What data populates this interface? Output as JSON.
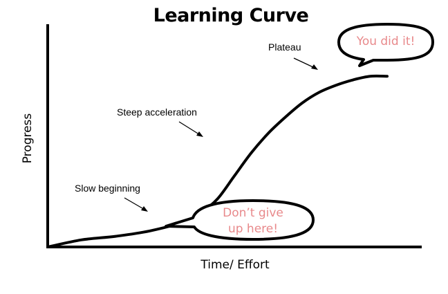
{
  "chart_data": {
    "type": "line",
    "title": "Learning Curve",
    "xlabel": "Time/ Effort",
    "ylabel": "Progress",
    "grid": false,
    "series": [
      {
        "x": [
          0,
          10,
          20,
          30,
          40,
          45,
          50,
          55,
          60,
          65,
          70,
          75,
          80,
          85,
          90,
          95,
          100
        ],
        "y": [
          0,
          4,
          6,
          9,
          14,
          19,
          27,
          40,
          53,
          64,
          73,
          81,
          87,
          91,
          94,
          96,
          96
        ],
        "color": "#000000"
      }
    ],
    "xlim": [
      0,
      100
    ],
    "ylim": [
      0,
      100
    ],
    "annotations": [
      {
        "text": "Plateau",
        "x": 83,
        "y": 100
      },
      {
        "text": "Steep acceleration",
        "x": 42,
        "y": 66
      },
      {
        "text": "Slow beginning",
        "x": 25,
        "y": 22
      }
    ],
    "callouts": [
      {
        "lines": [
          "You did it!"
        ],
        "color": "#e8898b"
      },
      {
        "lines": [
          "Don’t give",
          "up here!"
        ],
        "color": "#e8898b"
      }
    ]
  }
}
